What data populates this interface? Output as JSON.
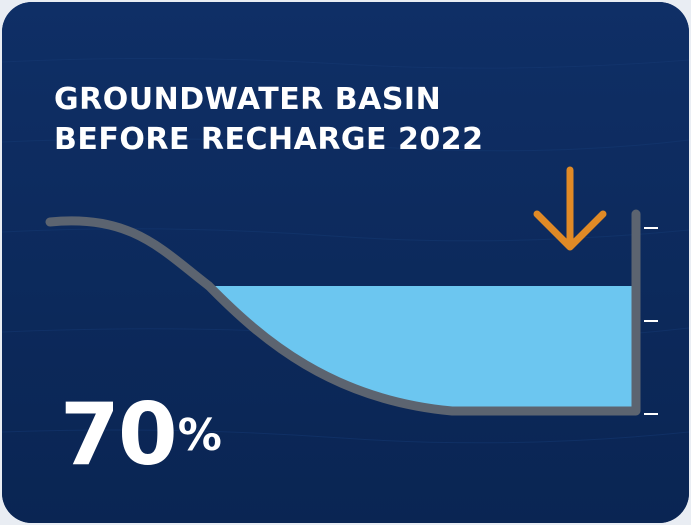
{
  "title": {
    "line1": "GROUNDWATER BASIN",
    "line2": "BEFORE RECHARGE 2022"
  },
  "level": {
    "number": "70",
    "sign": "%",
    "fraction": 0.7
  },
  "icons": {
    "arrow": "arrow-down-icon"
  },
  "colors": {
    "background": "#0c2a5c",
    "water": "#6cc6f0",
    "basin_line": "#5c6470",
    "arrow": "#e08a26",
    "text": "#ffffff"
  }
}
